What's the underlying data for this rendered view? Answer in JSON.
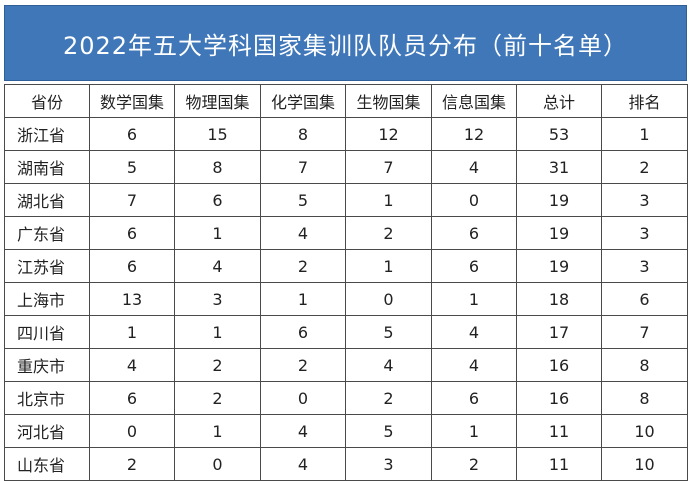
{
  "title": "2022年五大学科国家集训队队员分布（前十名单）",
  "headers": [
    "省份",
    "数学国集",
    "物理国集",
    "化学国集",
    "生物国集",
    "信息国集",
    "总计",
    "排名"
  ],
  "rows": [
    [
      "浙江省",
      "6",
      "15",
      "8",
      "12",
      "12",
      "53",
      "1"
    ],
    [
      "湖南省",
      "5",
      "8",
      "7",
      "7",
      "4",
      "31",
      "2"
    ],
    [
      "湖北省",
      "7",
      "6",
      "5",
      "1",
      "0",
      "19",
      "3"
    ],
    [
      "广东省",
      "6",
      "1",
      "4",
      "2",
      "6",
      "19",
      "3"
    ],
    [
      "江苏省",
      "6",
      "4",
      "2",
      "1",
      "6",
      "19",
      "3"
    ],
    [
      "上海市",
      "13",
      "3",
      "1",
      "0",
      "1",
      "18",
      "6"
    ],
    [
      "四川省",
      "1",
      "1",
      "6",
      "5",
      "4",
      "17",
      "7"
    ],
    [
      "重庆市",
      "4",
      "2",
      "2",
      "4",
      "4",
      "16",
      "8"
    ],
    [
      "北京市",
      "6",
      "2",
      "0",
      "2",
      "6",
      "16",
      "8"
    ],
    [
      "河北省",
      "0",
      "1",
      "4",
      "5",
      "1",
      "11",
      "10"
    ],
    [
      "山东省",
      "2",
      "0",
      "4",
      "3",
      "2",
      "11",
      "10"
    ]
  ],
  "colors": {
    "title_background": "#3f77b9",
    "title_text": "#ffffff",
    "grid_line": "#4a4a4a"
  }
}
